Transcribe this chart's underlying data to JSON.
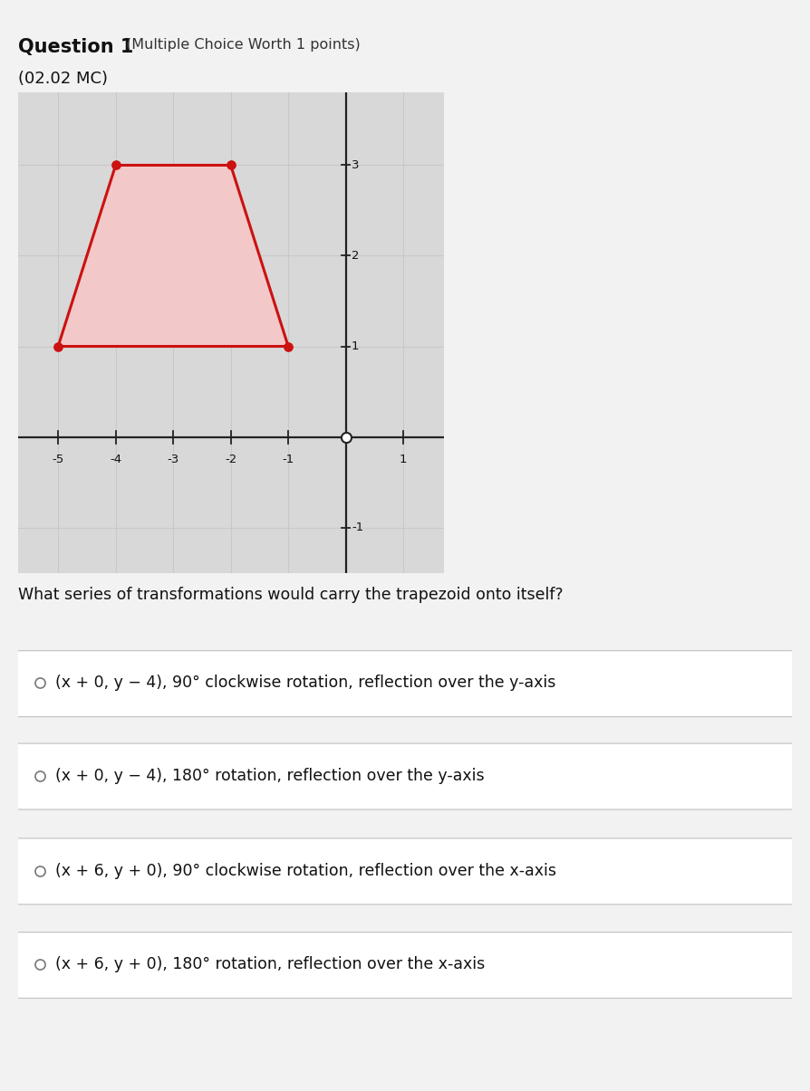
{
  "title_bold": "Question 1",
  "title_suffix": "(Multiple Choice Worth 1 points)",
  "subtitle": "(02.02 MC)",
  "question_text": "What series of transformations would carry the trapezoid onto itself?",
  "choices": [
    "O (x + 0, y − 4), 90° clockwise rotation, reflection over the y-axis",
    "O (x + 0, y − 4), 180° rotation, reflection over the y-axis",
    "O (x + 6, y + 0), 90° clockwise rotation, reflection over the x-axis",
    "O (x + 6, y + 0), 180° rotation, reflection over the x-axis"
  ],
  "trapezoid_x": [
    -5,
    -1,
    -2,
    -4,
    -5
  ],
  "trapezoid_y": [
    1,
    1,
    3,
    3,
    1
  ],
  "trap_fill_color": "#f2c8c8",
  "trap_edge_color": "#cc1111",
  "trap_linewidth": 2.2,
  "vertex_color": "#cc1111",
  "axis_xlim": [
    -5.7,
    1.7
  ],
  "axis_ylim": [
    -1.5,
    3.8
  ],
  "x_ticks": [
    -5,
    -4,
    -3,
    -2,
    -1,
    1
  ],
  "y_ticks": [
    -1,
    1,
    2,
    3
  ],
  "x_tick_labels": [
    "-5",
    "-4",
    "-3",
    "-2",
    "-1",
    "1"
  ],
  "y_tick_labels": [
    "-1",
    "1",
    "2",
    "3"
  ],
  "grid_color": "#c8c8c8",
  "plot_bg_color": "#d8d8d8",
  "page_bg_color": "#f2f2f2",
  "choice_border_color": "#c0c0c0",
  "axis_color": "#222222"
}
